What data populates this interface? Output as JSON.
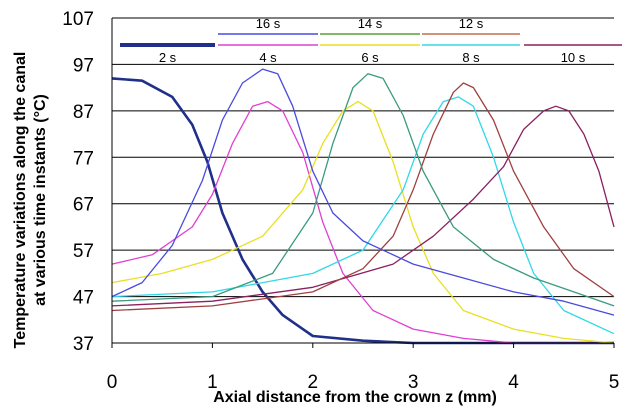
{
  "chart_data": {
    "type": "line",
    "title": "",
    "xlabel": "Axial distance from the crown z (mm)",
    "ylabel": "Temperature variations along the canal at various time instants (°C)",
    "ylabel_lines": [
      "Temperature variations along the canal",
      "at various time instants (°C)"
    ],
    "xlim": [
      0,
      5
    ],
    "ylim": [
      37,
      107
    ],
    "x_ticks": [
      "0",
      "1",
      "2",
      "3",
      "4",
      "5"
    ],
    "y_ticks": [
      "37",
      "47",
      "57",
      "67",
      "77",
      "87",
      "97",
      "107"
    ],
    "grid": "horizontal",
    "legend_placement": "top",
    "series": [
      {
        "name": "2 s",
        "color": "#1f2f8a",
        "x": [
          0,
          0.3,
          0.6,
          0.8,
          0.95,
          1.1,
          1.3,
          1.5,
          1.7,
          1.9,
          2.0,
          2.5,
          3.0,
          5.0
        ],
        "y": [
          94,
          93.5,
          90,
          84,
          76,
          65,
          55,
          48,
          43,
          40,
          38.5,
          37.5,
          37,
          37
        ]
      },
      {
        "name": "4 s",
        "color": "#e040d0",
        "x": [
          0,
          0.4,
          0.8,
          1.0,
          1.2,
          1.4,
          1.55,
          1.7,
          1.9,
          2.1,
          2.3,
          2.6,
          3.0,
          3.5,
          4.0,
          5.0
        ],
        "y": [
          54,
          56,
          62,
          69,
          80,
          88,
          89,
          87,
          78,
          63,
          52,
          44,
          40,
          38,
          37,
          37
        ]
      },
      {
        "name": "6 s",
        "color": "#e8e020",
        "x": [
          0,
          0.5,
          1.0,
          1.5,
          1.9,
          2.1,
          2.3,
          2.45,
          2.6,
          2.8,
          3.0,
          3.2,
          3.5,
          4.0,
          4.5,
          5.0
        ],
        "y": [
          50,
          52,
          55,
          60,
          70,
          80,
          87,
          89,
          87,
          76,
          62,
          52,
          44,
          40,
          38,
          37
        ]
      },
      {
        "name": "8 s",
        "color": "#30d8e8",
        "x": [
          0,
          1.0,
          2.0,
          2.5,
          2.9,
          3.1,
          3.3,
          3.45,
          3.6,
          3.8,
          4.0,
          4.2,
          4.5,
          5.0
        ],
        "y": [
          47,
          48,
          52,
          57,
          70,
          82,
          89,
          90,
          88,
          77,
          63,
          52,
          44,
          39
        ]
      },
      {
        "name": "10 s",
        "color": "#8a2060",
        "x": [
          0,
          1.0,
          2.0,
          2.8,
          3.2,
          3.6,
          3.9,
          4.1,
          4.3,
          4.42,
          4.55,
          4.7,
          4.85,
          5.0
        ],
        "y": [
          45,
          46,
          49,
          54,
          60,
          68,
          75,
          83,
          87,
          88,
          87,
          82,
          74,
          62
        ]
      },
      {
        "name": "12 s",
        "color": "#a04040",
        "x": [
          0,
          1.0,
          2.0,
          2.5,
          2.8,
          3.0,
          3.2,
          3.4,
          3.5,
          3.6,
          3.8,
          4.0,
          4.3,
          4.6,
          5.0
        ],
        "y": [
          44,
          45,
          48,
          53,
          60,
          70,
          82,
          91,
          93,
          92,
          85,
          74,
          62,
          53,
          47
        ]
      },
      {
        "name": "14 s",
        "color": "#3a9a80",
        "x": [
          0,
          1.0,
          1.6,
          2.0,
          2.2,
          2.4,
          2.55,
          2.7,
          2.9,
          3.1,
          3.4,
          3.8,
          4.2,
          4.6,
          5.0
        ],
        "y": [
          46,
          47,
          52,
          65,
          80,
          92,
          95,
          94,
          86,
          74,
          62,
          55,
          51,
          48,
          45
        ]
      },
      {
        "name": "16 s",
        "color": "#4a4ae0",
        "x": [
          0,
          0.3,
          0.6,
          0.9,
          1.1,
          1.3,
          1.5,
          1.65,
          1.8,
          2.0,
          2.2,
          2.5,
          3.0,
          3.5,
          4.0,
          4.5,
          5.0
        ],
        "y": [
          47,
          50,
          58,
          72,
          85,
          93,
          96,
          95,
          88,
          74,
          65,
          59,
          54,
          51,
          48,
          46,
          43
        ]
      }
    ],
    "legend": [
      {
        "row": 1,
        "name": "16 s",
        "color": "#4a4ae0"
      },
      {
        "row": 1,
        "name": "14 s",
        "color": "#5aa030"
      },
      {
        "row": 1,
        "name": "12 s",
        "color": "#c07050"
      },
      {
        "row": 2,
        "name": "2 s",
        "color": "#1f2f8a"
      },
      {
        "row": 2,
        "name": "4 s",
        "color": "#e040d0"
      },
      {
        "row": 2,
        "name": "6 s",
        "color": "#e8e020"
      },
      {
        "row": 2,
        "name": "8 s",
        "color": "#30d8e8"
      },
      {
        "row": 2,
        "name": "10 s",
        "color": "#8a2060"
      }
    ]
  }
}
